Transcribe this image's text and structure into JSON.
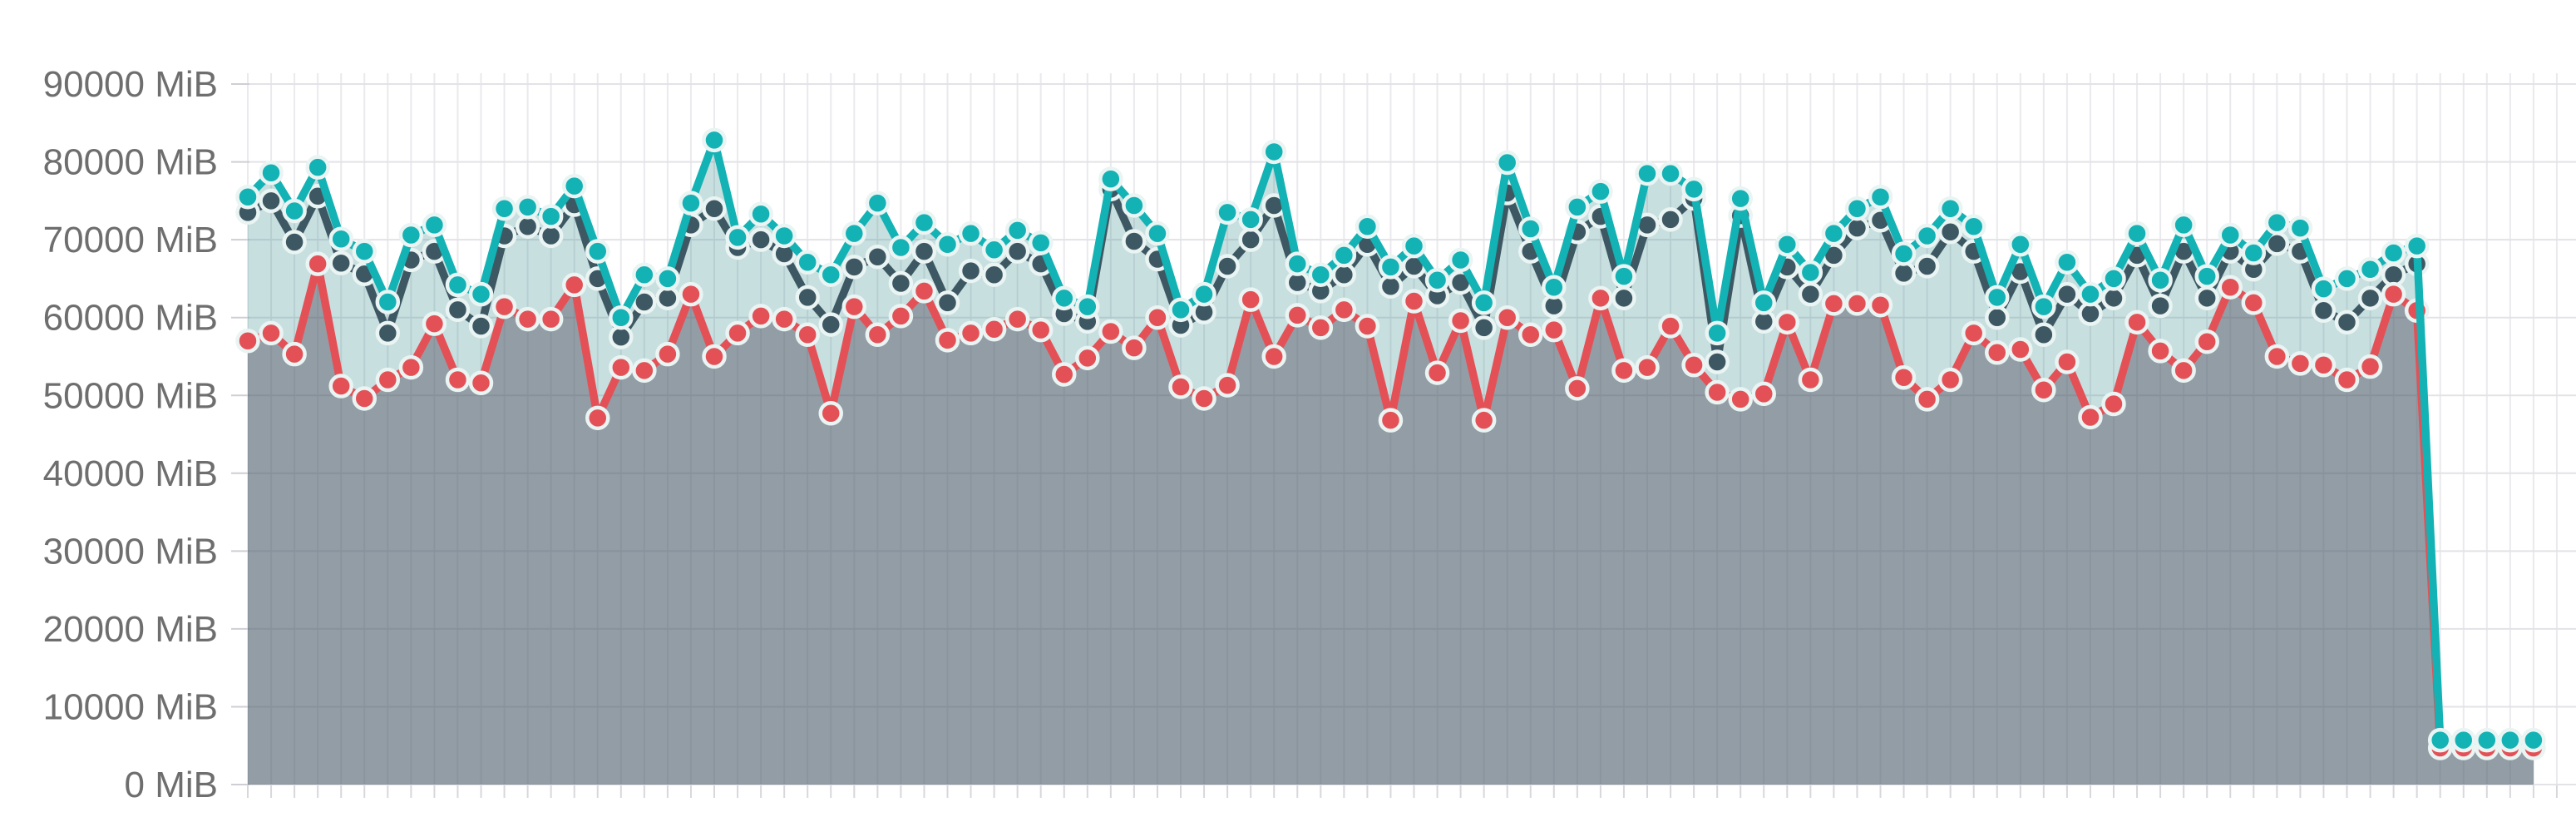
{
  "chart_data": {
    "type": "line",
    "title": "",
    "unit": "MiB",
    "legend": "none",
    "grid": "on",
    "y_axis": {
      "min": 0,
      "max": 90000,
      "tick_step": 10000,
      "tick_labels": [
        "0 MiB",
        "10000 MiB",
        "20000 MiB",
        "30000 MiB",
        "40000 MiB",
        "50000 MiB",
        "60000 MiB",
        "70000 MiB",
        "80000 MiB",
        "90000 MiB"
      ]
    },
    "x_axis": {
      "tick_labels_visible": false,
      "point_count": 99
    },
    "series": [
      {
        "id": "teal-series",
        "color": "#13b2b4",
        "fill": "rgba(70,150,150,0.30)",
        "z": "top",
        "values": [
          75500,
          78600,
          73700,
          79300,
          70100,
          68500,
          62000,
          70600,
          71900,
          64200,
          63000,
          74000,
          74200,
          73000,
          76900,
          68500,
          60000,
          65500,
          65000,
          74700,
          82800,
          70300,
          73300,
          70500,
          67100,
          65500,
          70800,
          74700,
          69000,
          72200,
          69400,
          70800,
          68700,
          71200,
          69600,
          62500,
          61400,
          77800,
          74400,
          70800,
          61000,
          63000,
          73500,
          72600,
          81300,
          66900,
          65500,
          68000,
          71700,
          66500,
          69200,
          64800,
          67400,
          61900,
          79900,
          71400,
          63900,
          74200,
          76200,
          65300,
          78500,
          78500,
          76500,
          58000,
          75300,
          61900,
          69400,
          65800,
          70800,
          74000,
          75500,
          68200,
          70500,
          74000,
          71700,
          62600,
          69400,
          61400,
          67100,
          63000,
          65000,
          70800,
          64800,
          71900,
          65300,
          70600,
          68300,
          72200,
          71500,
          63700,
          65000,
          66200,
          68300,
          69200,
          5700,
          5700,
          5700,
          5700,
          5700
        ]
      },
      {
        "id": "slate-series",
        "color": "#3e5863",
        "fill": null,
        "z": "middle",
        "values": [
          73500,
          75000,
          69700,
          75600,
          67000,
          65600,
          58000,
          67400,
          68500,
          61000,
          58900,
          70500,
          71700,
          70500,
          74500,
          65000,
          57500,
          62000,
          62500,
          71900,
          74000,
          69000,
          70000,
          68200,
          62600,
          59100,
          66500,
          67800,
          64400,
          68500,
          61900,
          66000,
          65500,
          68500,
          66900,
          60500,
          59500,
          76500,
          69800,
          67500,
          59000,
          60700,
          66600,
          70000,
          74400,
          64500,
          63400,
          65500,
          69400,
          64000,
          66600,
          62800,
          64500,
          58700,
          76000,
          68500,
          61500,
          71000,
          73000,
          62500,
          71900,
          72600,
          75300,
          54300,
          73100,
          59500,
          66500,
          63000,
          68000,
          71500,
          72500,
          65700,
          66600,
          71000,
          68500,
          60000,
          65900,
          57800,
          63000,
          60500,
          62500,
          68000,
          61500,
          68500,
          62500,
          68500,
          66200,
          69500,
          68500,
          60900,
          59400,
          62500,
          65500,
          66900,
          null,
          null,
          null,
          null,
          null
        ]
      },
      {
        "id": "red-series",
        "color": "#e35157",
        "fill": "rgba(84,78,96,0.45)",
        "z": "bottom",
        "values": [
          57000,
          58000,
          55300,
          66900,
          51200,
          49600,
          52000,
          53600,
          59200,
          52000,
          51600,
          61400,
          59800,
          59800,
          64200,
          47100,
          53600,
          53200,
          55300,
          63000,
          55000,
          58000,
          60200,
          59800,
          57800,
          47700,
          61400,
          57800,
          60200,
          63400,
          57100,
          58000,
          58500,
          59800,
          58400,
          52700,
          54800,
          58200,
          56100,
          60000,
          51100,
          49600,
          51300,
          62300,
          55000,
          60300,
          58700,
          61000,
          58900,
          46800,
          62100,
          52900,
          59600,
          46800,
          60000,
          57800,
          58400,
          50900,
          62500,
          53200,
          53600,
          58900,
          53900,
          50400,
          49500,
          50200,
          59400,
          52000,
          61800,
          61800,
          61600,
          52300,
          49500,
          52000,
          58000,
          55500,
          55900,
          50700,
          54300,
          47200,
          48900,
          59400,
          55700,
          53200,
          56900,
          63900,
          61900,
          55000,
          54100,
          53900,
          52000,
          53700,
          63000,
          60900,
          4700,
          4700,
          4700,
          4700,
          4700
        ]
      }
    ]
  }
}
